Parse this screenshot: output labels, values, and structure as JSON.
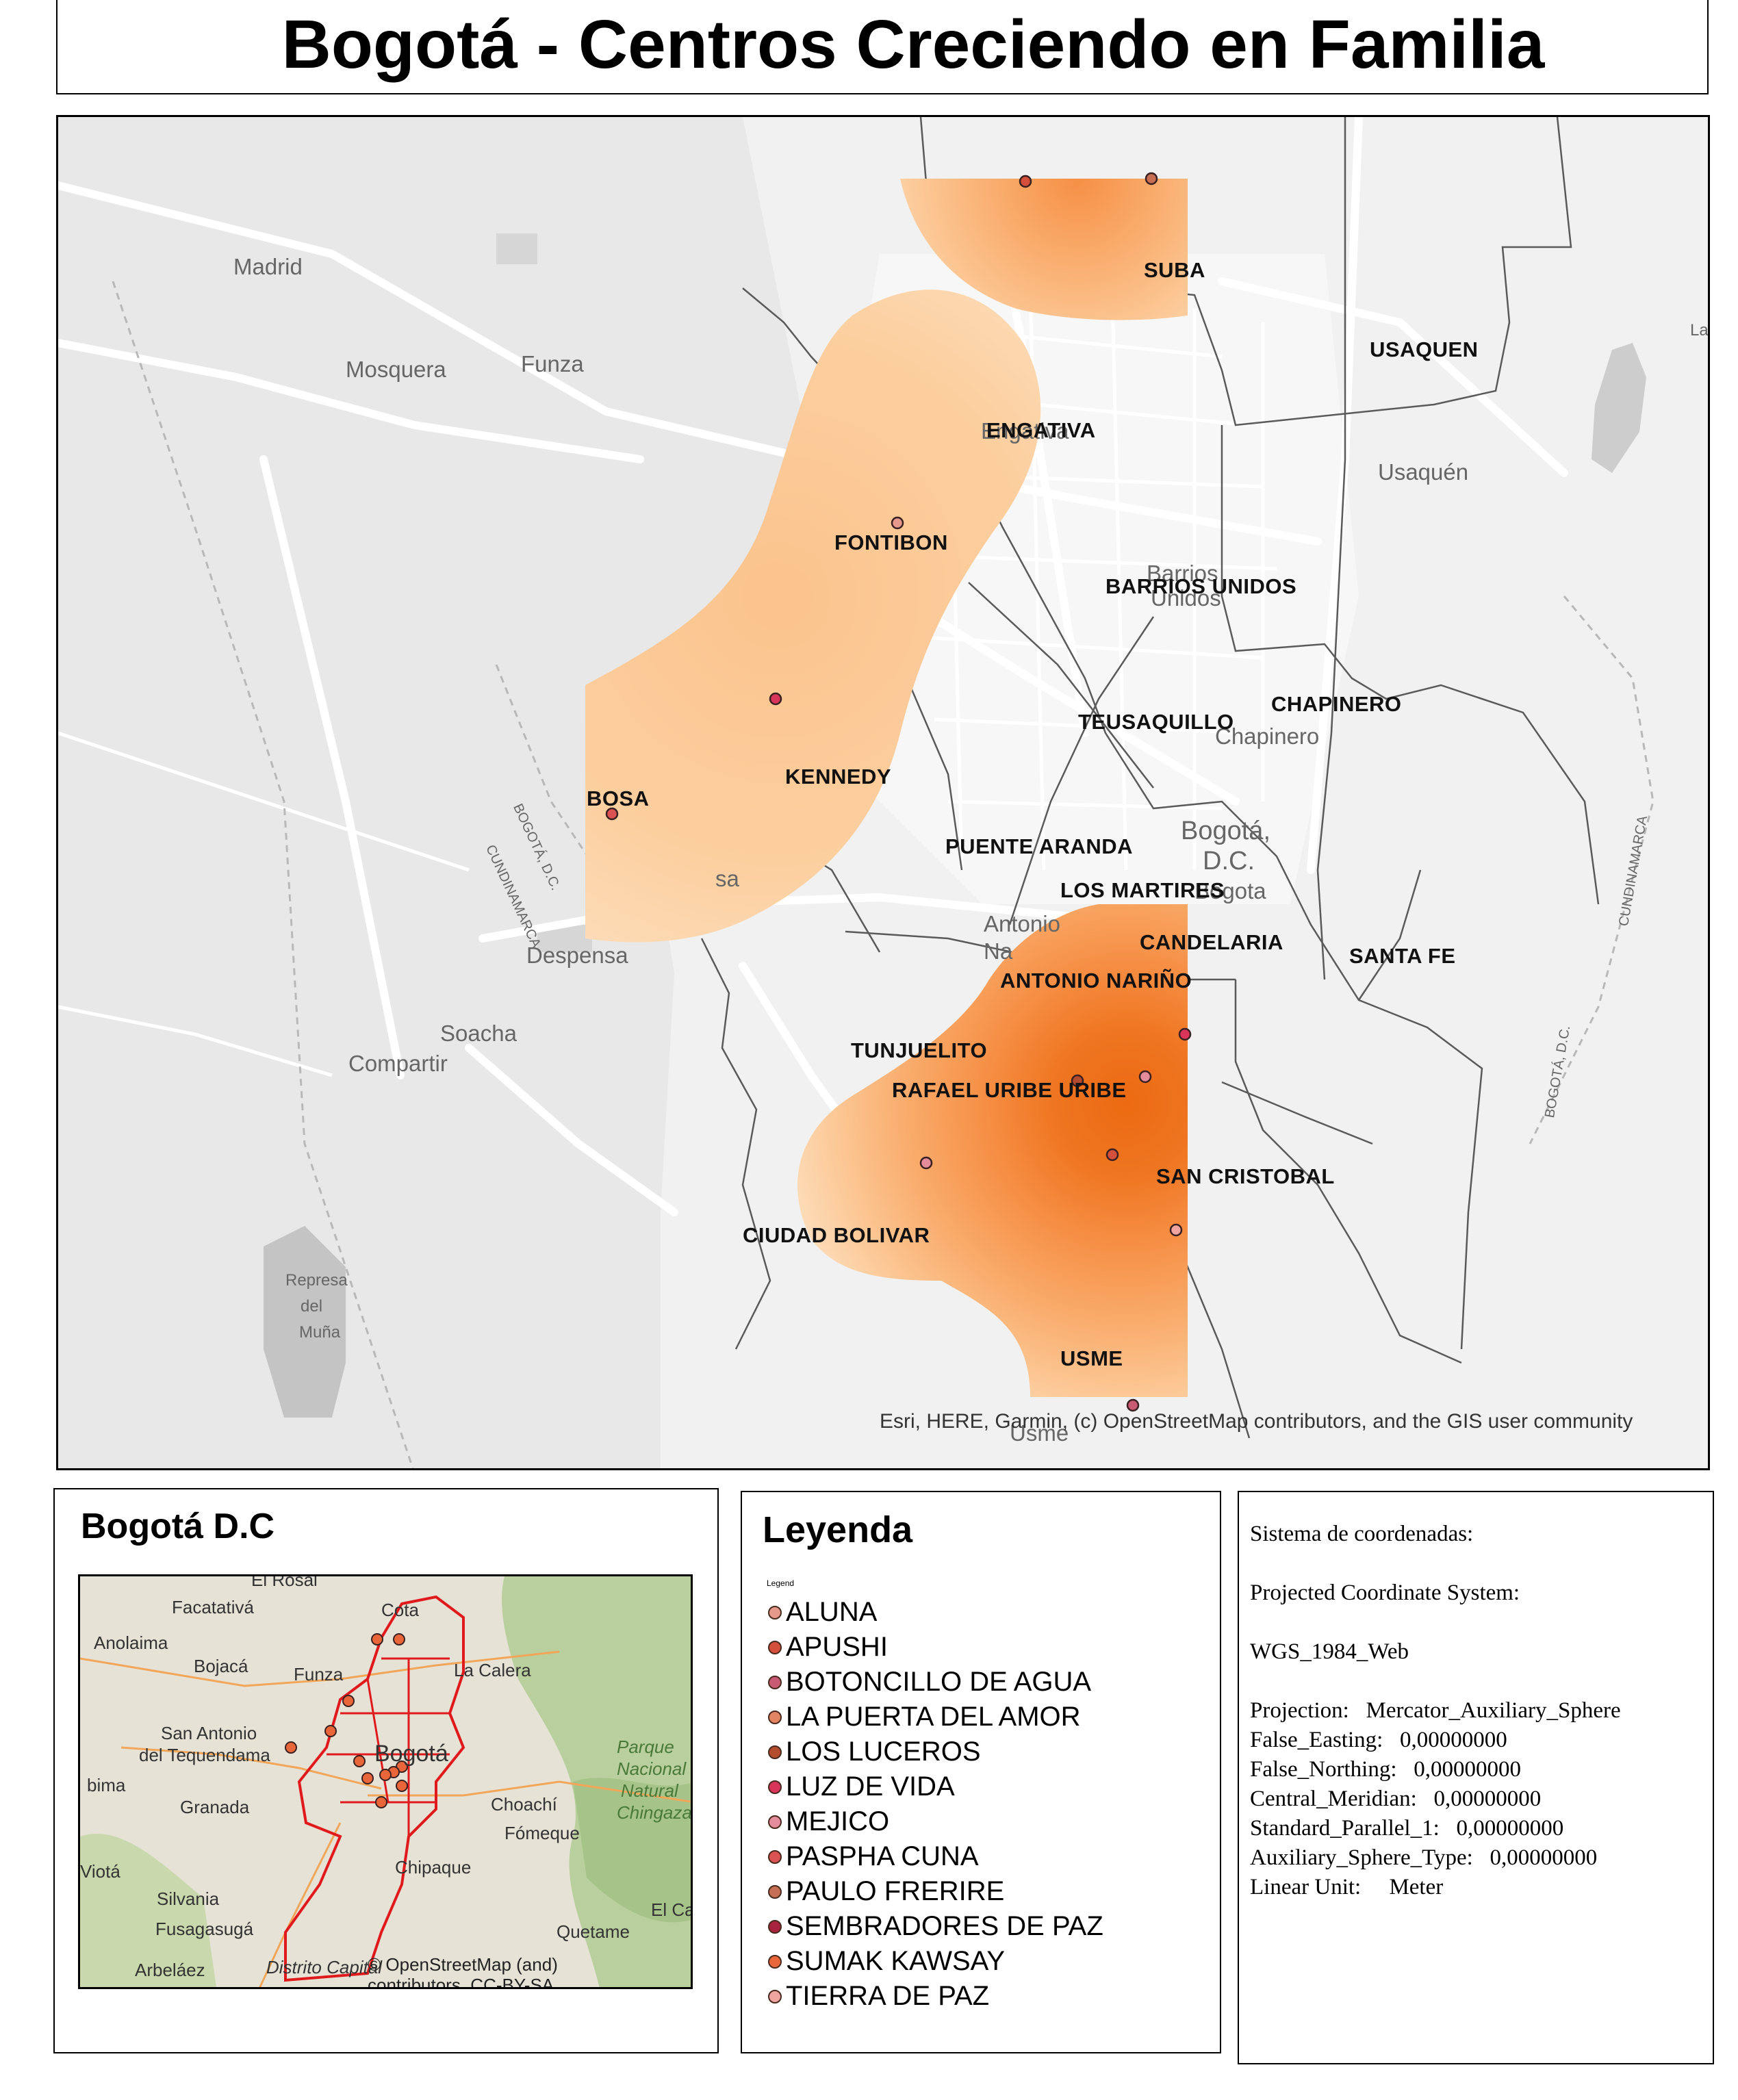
{
  "title": "Bogotá - Centros Creciendo en Familia",
  "main_map": {
    "localidad_labels": [
      "SUBA",
      "USAQUEN",
      "ENGATIVA",
      "FONTIBON",
      "BARRIOS UNIDOS",
      "CHAPINERO",
      "TEUSAQUILLO",
      "KENNEDY",
      "BOSA",
      "PUENTE ARANDA",
      "LOS MARTIRES",
      "CANDELARIA",
      "SANTA FE",
      "ANTONIO NARIÑO",
      "TUNJUELITO",
      "RAFAEL URIBE URIBE",
      "SAN CRISTOBAL",
      "CIUDAD BOLIVAR",
      "USME"
    ],
    "basemap_labels": [
      "Madrid",
      "Mosquera",
      "Funza",
      "Usaquén",
      "Chapinero",
      "Despensa",
      "Soacha",
      "Compartir",
      "Represa",
      "del",
      "Muña",
      "Bogotá,",
      "D.C.",
      "Bogota",
      "Barrios",
      "Unidos",
      "Antonio",
      "Na",
      "Engativa",
      "CUNDINAMARCA",
      "BOGOTÁ, D.C.",
      "BOGOTÁ, D.C.",
      "CUNDINAMARCA",
      "Usme",
      "sa",
      "La"
    ],
    "attribution": "Esri, HERE, Garmin, (c) OpenStreetMap contributors, and the GIS user community",
    "heat_colors": [
      "#fde0c0",
      "#fcc896",
      "#f9ac6c",
      "#f68f45",
      "#ef7520"
    ],
    "point_color": "#d6455c"
  },
  "inset": {
    "title": "Bogotá D.C",
    "places": [
      "El Rosal",
      "Facatativá",
      "Anolaima",
      "Bojacá",
      "Funza",
      "Cota",
      "La Calera",
      "San Antonio",
      "del Tequendama",
      "Bogotá",
      "bima",
      "Granada",
      "Parque",
      "Nacional",
      "Natural",
      "Chingaza",
      "Choachí",
      "Fómeque",
      "Viotá",
      "Chipaque",
      "Silvania",
      "Fusagasugá",
      "Quetame",
      "El Cal",
      "Arbeláez",
      "Distrito Capital"
    ],
    "attribution_lines": [
      "© OpenStreetMap (and)",
      "contributors, CC-BY-SA"
    ],
    "boundary_color": "#e0191c"
  },
  "legend": {
    "title": "Leyenda",
    "subtitle": "Legend",
    "items": [
      {
        "label": "ALUNA",
        "color": "#e4998c"
      },
      {
        "label": "APUSHI",
        "color": "#d4503c"
      },
      {
        "label": "BOTONCILLO DE AGUA",
        "color": "#c95a73"
      },
      {
        "label": "LA PUERTA DEL AMOR",
        "color": "#e38563"
      },
      {
        "label": "LOS LUCEROS",
        "color": "#b34b2e"
      },
      {
        "label": "LUZ DE VIDA",
        "color": "#d9355b"
      },
      {
        "label": "MEJICO",
        "color": "#e48b9c"
      },
      {
        "label": "PASPHA CUNA",
        "color": "#db5252"
      },
      {
        "label": "PAULO FRERIRE",
        "color": "#c66f55"
      },
      {
        "label": "SEMBRADORES DE PAZ",
        "color": "#a8243e"
      },
      {
        "label": "SUMAK KAWSAY",
        "color": "#e8663a"
      },
      {
        "label": "TIERRA DE PAZ",
        "color": "#f0a4a0"
      }
    ]
  },
  "coordinate_system": {
    "lines": [
      "Sistema de coordenadas:",
      "",
      "Projected Coordinate System:",
      "",
      "WGS_1984_Web",
      "",
      "Projection:   Mercator_Auxiliary_Sphere",
      "False_Easting:   0,00000000",
      "False_Northing:   0,00000000",
      "Central_Meridian:   0,00000000",
      "Standard_Parallel_1:   0,00000000",
      "Auxiliary_Sphere_Type:   0,00000000",
      "Linear Unit:     Meter"
    ]
  }
}
